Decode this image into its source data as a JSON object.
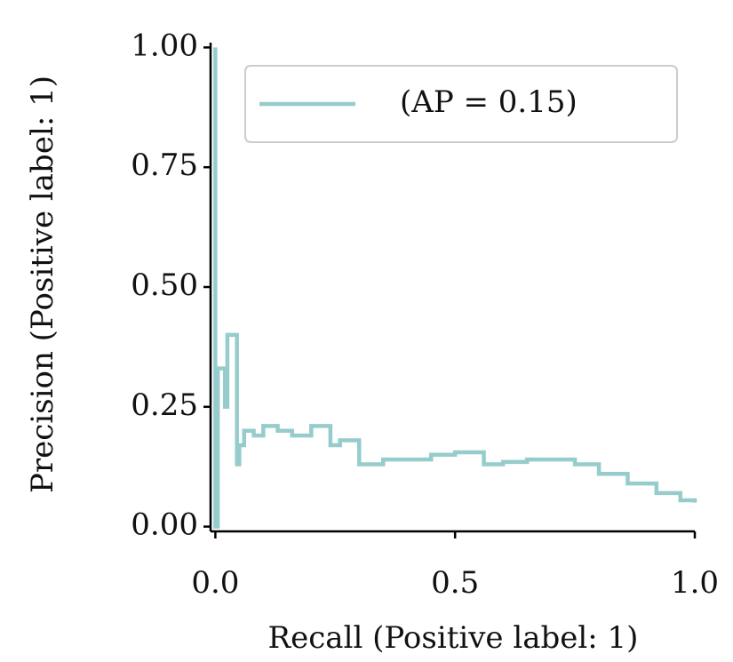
{
  "chart_data": {
    "type": "line",
    "drawstyle": "steps-post",
    "xlabel": "Recall (Positive label: 1)",
    "ylabel": "Precision (Positive label: 1)",
    "x": [
      0,
      0,
      0.005,
      0.02,
      0.025,
      0.045,
      0.05,
      0.06,
      0.08,
      0.1,
      0.13,
      0.16,
      0.2,
      0.24,
      0.26,
      0.3,
      0.35,
      0.4,
      0.45,
      0.5,
      0.56,
      0.6,
      0.65,
      0.7,
      0.75,
      0.8,
      0.86,
      0.92,
      0.97,
      1.0
    ],
    "series": [
      {
        "name": "(AP = 0.15)",
        "color": "#96cccb",
        "values": [
          1,
          0,
          0.33,
          0.25,
          0.4,
          0.13,
          0.17,
          0.2,
          0.19,
          0.21,
          0.2,
          0.19,
          0.21,
          0.17,
          0.18,
          0.13,
          0.14,
          0.14,
          0.15,
          0.155,
          0.13,
          0.135,
          0.14,
          0.14,
          0.13,
          0.11,
          0.09,
          0.07,
          0.055,
          0.05
        ]
      }
    ],
    "xlim": [
      -0.01,
      1.0
    ],
    "ylim": [
      -0.01,
      1.01
    ],
    "xticks": [
      {
        "value": 0,
        "label": "0.0"
      },
      0.5,
      {
        "value": 1,
        "label": "1.0"
      }
    ],
    "yticks": [
      {
        "value": 0,
        "label": "0.00"
      },
      {
        "value": 0.25,
        "label": "0.25"
      },
      {
        "value": 0.5,
        "label": "0.50"
      },
      {
        "value": 0.75,
        "label": "0.75"
      },
      {
        "value": 1,
        "label": "1.00"
      }
    ],
    "legend": "upper right",
    "grid": false
  }
}
